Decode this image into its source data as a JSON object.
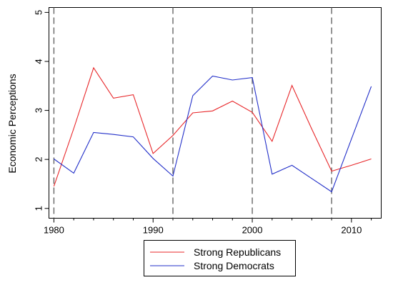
{
  "chart_data": {
    "type": "line",
    "title": "",
    "xlabel": "",
    "ylabel": "Economic Perceptions",
    "xlim": [
      1979.5,
      2013
    ],
    "ylim": [
      0.8,
      5.1
    ],
    "xticks": [
      1980,
      1990,
      2000,
      2010
    ],
    "yticks": [
      1,
      2,
      3,
      4,
      5
    ],
    "grid": false,
    "vlines": [
      1980,
      1992,
      2000,
      2008
    ],
    "legend_position": "bottom",
    "series": [
      {
        "name": "Strong Republicans",
        "color": "#e8272a",
        "x": [
          1980,
          1982,
          1984,
          1986,
          1988,
          1990,
          1992,
          1994,
          1996,
          1998,
          2000,
          2002,
          2004,
          2006,
          2008,
          2010,
          2012
        ],
        "y": [
          1.45,
          2.63,
          3.87,
          3.25,
          3.32,
          2.12,
          2.49,
          2.95,
          2.99,
          3.19,
          2.96,
          2.37,
          3.51,
          2.62,
          1.76,
          1.88,
          2.01
        ]
      },
      {
        "name": "Strong Democrats",
        "color": "#2330c9",
        "x": [
          1980,
          1982,
          1984,
          1986,
          1988,
          1990,
          1992,
          1994,
          1996,
          1998,
          2000,
          2002,
          2004,
          2006,
          2008,
          2010,
          2012
        ],
        "y": [
          2.01,
          1.72,
          2.55,
          2.51,
          2.46,
          2.02,
          1.66,
          3.3,
          3.7,
          3.62,
          3.67,
          1.7,
          1.88,
          1.61,
          1.34,
          2.42,
          3.49
        ]
      }
    ]
  }
}
